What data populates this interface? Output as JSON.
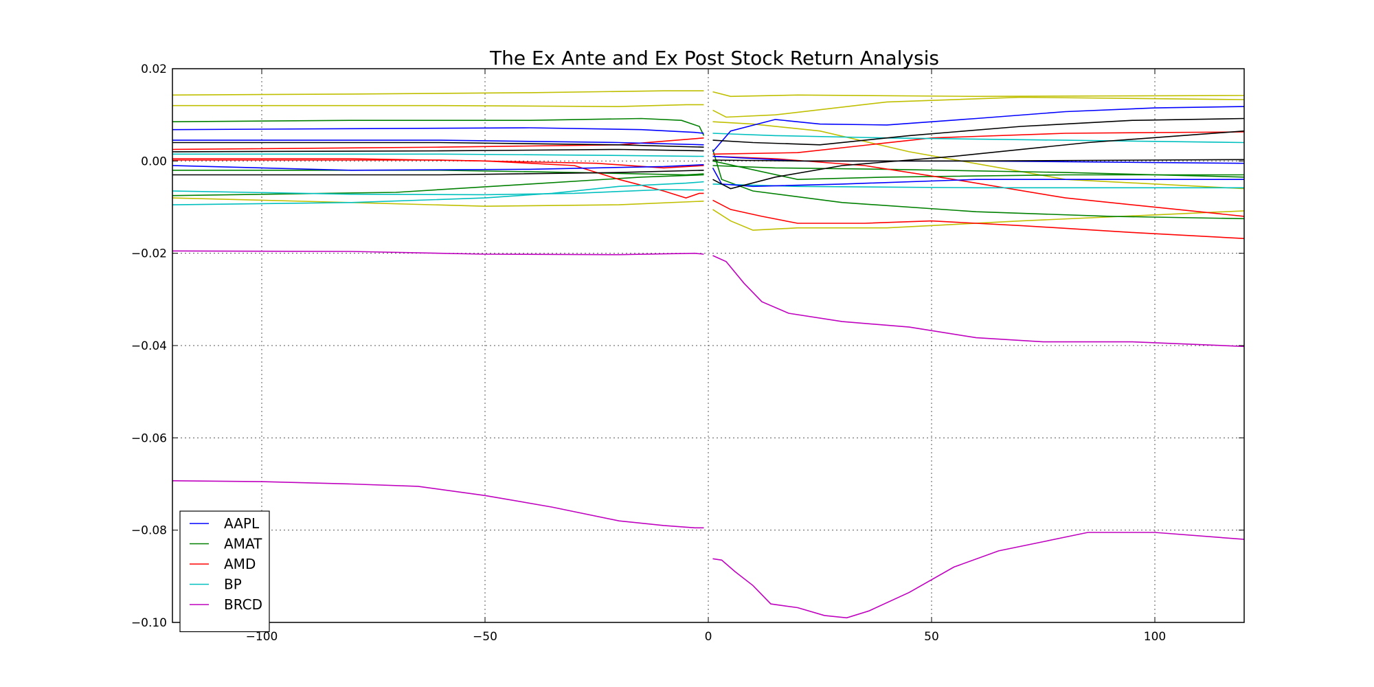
{
  "chart_data": {
    "type": "line",
    "title": "The Ex Ante and Ex Post Stock Return Analysis",
    "xlabel": "",
    "ylabel": "",
    "xlim": [
      -120,
      120
    ],
    "ylim": [
      -0.1,
      0.02
    ],
    "x_ticks": [
      -100,
      -50,
      0,
      50,
      100
    ],
    "x_tick_labels": [
      "−100",
      "−50",
      "0",
      "50",
      "100"
    ],
    "y_ticks": [
      0.02,
      0.0,
      -0.02,
      -0.04,
      -0.06,
      -0.08,
      -0.1
    ],
    "y_tick_labels": [
      "0.02",
      "0.00",
      "−0.02",
      "−0.04",
      "−0.06",
      "−0.08",
      "−0.10"
    ],
    "grid": true,
    "legend_position": "lower-left",
    "colors": {
      "blue": "#0000ff",
      "green": "#008000",
      "red": "#ff0000",
      "cyan": "#00bfbf",
      "magenta": "#bf00bf",
      "yellow": "#bfbf00",
      "black": "#000000"
    },
    "legend": [
      {
        "name": "AAPL",
        "color": "#0000ff"
      },
      {
        "name": "AMAT",
        "color": "#008000"
      },
      {
        "name": "AMD",
        "color": "#ff0000"
      },
      {
        "name": "BP",
        "color": "#00bfbf"
      },
      {
        "name": "BRCD",
        "color": "#bf00bf"
      }
    ],
    "series": [
      {
        "name": "BRCD",
        "color": "#bf00bf",
        "points": [
          [
            -120,
            -0.0693
          ],
          [
            -100,
            -0.0695
          ],
          [
            -80,
            -0.07
          ],
          [
            -65,
            -0.0705
          ],
          [
            -50,
            -0.0725
          ],
          [
            -35,
            -0.075
          ],
          [
            -20,
            -0.078
          ],
          [
            -10,
            -0.079
          ],
          [
            -3,
            -0.0795
          ],
          [
            -1,
            -0.0795
          ]
        ]
      },
      {
        "name": "BRCD",
        "color": "#bf00bf",
        "points": [
          [
            1,
            -0.0862
          ],
          [
            3,
            -0.0865
          ],
          [
            6,
            -0.089
          ],
          [
            10,
            -0.092
          ],
          [
            14,
            -0.096
          ],
          [
            20,
            -0.0968
          ],
          [
            26,
            -0.0985
          ],
          [
            31,
            -0.099
          ],
          [
            36,
            -0.0975
          ],
          [
            45,
            -0.0935
          ],
          [
            55,
            -0.088
          ],
          [
            65,
            -0.0845
          ],
          [
            75,
            -0.0825
          ],
          [
            85,
            -0.0805
          ],
          [
            100,
            -0.0805
          ],
          [
            120,
            -0.082
          ]
        ]
      },
      {
        "name": "",
        "color": "#bf00bf",
        "points": [
          [
            -120,
            -0.0195
          ],
          [
            -80,
            -0.0196
          ],
          [
            -50,
            -0.0202
          ],
          [
            -20,
            -0.0203
          ],
          [
            -3,
            -0.02
          ],
          [
            -1,
            -0.0202
          ]
        ]
      },
      {
        "name": "",
        "color": "#bf00bf",
        "points": [
          [
            1,
            -0.0205
          ],
          [
            4,
            -0.0218
          ],
          [
            8,
            -0.0265
          ],
          [
            12,
            -0.0305
          ],
          [
            18,
            -0.033
          ],
          [
            30,
            -0.0348
          ],
          [
            45,
            -0.036
          ],
          [
            60,
            -0.0383
          ],
          [
            75,
            -0.0392
          ],
          [
            95,
            -0.0392
          ],
          [
            120,
            -0.0402
          ]
        ]
      },
      {
        "name": "",
        "color": "#bfbf00",
        "points": [
          [
            -120,
            0.0143
          ],
          [
            -80,
            0.0145
          ],
          [
            -40,
            0.0148
          ],
          [
            -10,
            0.0152
          ],
          [
            -1,
            0.0152
          ]
        ]
      },
      {
        "name": "",
        "color": "#bfbf00",
        "points": [
          [
            1,
            0.015
          ],
          [
            5,
            0.014
          ],
          [
            20,
            0.0143
          ],
          [
            60,
            0.014
          ],
          [
            120,
            0.0142
          ]
        ]
      },
      {
        "name": "",
        "color": "#bfbf00",
        "points": [
          [
            -120,
            0.012
          ],
          [
            -60,
            0.012
          ],
          [
            -20,
            0.0118
          ],
          [
            -5,
            0.0122
          ],
          [
            -1,
            0.0122
          ]
        ]
      },
      {
        "name": "",
        "color": "#bfbf00",
        "points": [
          [
            1,
            0.011
          ],
          [
            4,
            0.0095
          ],
          [
            15,
            0.01
          ],
          [
            40,
            0.0128
          ],
          [
            70,
            0.0138
          ],
          [
            120,
            0.0133
          ]
        ]
      },
      {
        "name": "",
        "color": "#bfbf00",
        "points": [
          [
            -120,
            -0.008
          ],
          [
            -80,
            -0.009
          ],
          [
            -50,
            -0.0098
          ],
          [
            -20,
            -0.0095
          ],
          [
            -1,
            -0.0087
          ]
        ]
      },
      {
        "name": "",
        "color": "#bfbf00",
        "points": [
          [
            1,
            -0.0105
          ],
          [
            5,
            -0.013
          ],
          [
            10,
            -0.015
          ],
          [
            20,
            -0.0145
          ],
          [
            40,
            -0.0145
          ],
          [
            70,
            -0.013
          ],
          [
            120,
            -0.0108
          ]
        ]
      },
      {
        "name": "",
        "color": "#bfbf00",
        "points": [
          [
            1,
            0.0085
          ],
          [
            10,
            0.008
          ],
          [
            25,
            0.0065
          ],
          [
            45,
            0.002
          ],
          [
            80,
            -0.004
          ],
          [
            120,
            -0.006
          ]
        ]
      },
      {
        "name": "AMAT",
        "color": "#008000",
        "points": [
          [
            -120,
            0.0085
          ],
          [
            -80,
            0.0088
          ],
          [
            -40,
            0.0088
          ],
          [
            -15,
            0.0092
          ],
          [
            -6,
            0.0088
          ],
          [
            -2,
            0.0075
          ],
          [
            -1,
            0.0055
          ]
        ]
      },
      {
        "name": "",
        "color": "#008000",
        "points": [
          [
            1,
            0.0025
          ],
          [
            3,
            -0.004
          ],
          [
            10,
            -0.0065
          ],
          [
            30,
            -0.009
          ],
          [
            60,
            -0.011
          ],
          [
            90,
            -0.012
          ],
          [
            120,
            -0.0125
          ]
        ]
      },
      {
        "name": "",
        "color": "#008000",
        "points": [
          [
            -120,
            -0.0075
          ],
          [
            -70,
            -0.0068
          ],
          [
            -40,
            -0.005
          ],
          [
            -15,
            -0.0035
          ],
          [
            -1,
            -0.003
          ]
        ]
      },
      {
        "name": "",
        "color": "#008000",
        "points": [
          [
            -120,
            -0.002
          ],
          [
            -60,
            -0.002
          ],
          [
            -30,
            -0.0025
          ],
          [
            -5,
            -0.003
          ],
          [
            -1,
            -0.0028
          ]
        ]
      },
      {
        "name": "",
        "color": "#008000",
        "points": [
          [
            1,
            -0.001
          ],
          [
            15,
            -0.0015
          ],
          [
            40,
            -0.0018
          ],
          [
            80,
            -0.0025
          ],
          [
            120,
            -0.0035
          ]
        ]
      },
      {
        "name": "",
        "color": "#008000",
        "points": [
          [
            1,
            0.0
          ],
          [
            20,
            -0.004
          ],
          [
            40,
            -0.0035
          ],
          [
            80,
            -0.003
          ],
          [
            120,
            -0.003
          ]
        ]
      },
      {
        "name": "AMD",
        "color": "#ff0000",
        "points": [
          [
            -120,
            0.0005
          ],
          [
            -80,
            0.0005
          ],
          [
            -50,
            0.0
          ],
          [
            -30,
            -0.001
          ],
          [
            -20,
            -0.004
          ],
          [
            -10,
            -0.0065
          ],
          [
            -5,
            -0.008
          ],
          [
            -2,
            -0.007
          ],
          [
            -1,
            -0.007
          ]
        ]
      },
      {
        "name": "",
        "color": "#ff0000",
        "points": [
          [
            1,
            -0.0085
          ],
          [
            5,
            -0.0105
          ],
          [
            12,
            -0.012
          ],
          [
            20,
            -0.0135
          ],
          [
            35,
            -0.0135
          ],
          [
            50,
            -0.013
          ],
          [
            70,
            -0.014
          ],
          [
            95,
            -0.0155
          ],
          [
            120,
            -0.0168
          ]
        ]
      },
      {
        "name": "",
        "color": "#ff0000",
        "points": [
          [
            -120,
            0.0002
          ],
          [
            -60,
            0.0002
          ],
          [
            -25,
            -0.0005
          ],
          [
            -10,
            -0.0015
          ],
          [
            -1,
            -0.001
          ]
        ]
      },
      {
        "name": "",
        "color": "#ff0000",
        "points": [
          [
            1,
            0.001
          ],
          [
            15,
            0.0005
          ],
          [
            35,
            -0.001
          ],
          [
            55,
            -0.004
          ],
          [
            80,
            -0.008
          ],
          [
            120,
            -0.012
          ]
        ]
      },
      {
        "name": "",
        "color": "#ff0000",
        "points": [
          [
            1,
            0.0015
          ],
          [
            20,
            0.0018
          ],
          [
            50,
            0.005
          ],
          [
            80,
            0.006
          ],
          [
            120,
            0.0063
          ]
        ]
      },
      {
        "name": "",
        "color": "#ff0000",
        "points": [
          [
            -120,
            0.0025
          ],
          [
            -60,
            0.003
          ],
          [
            -20,
            0.0035
          ],
          [
            -1,
            0.005
          ]
        ]
      },
      {
        "name": "BP",
        "color": "#00bfbf",
        "points": [
          [
            -120,
            -0.0065
          ],
          [
            -80,
            -0.0072
          ],
          [
            -50,
            -0.0073
          ],
          [
            -30,
            -0.007
          ],
          [
            -10,
            -0.0062
          ],
          [
            -1,
            -0.0063
          ]
        ]
      },
      {
        "name": "",
        "color": "#00bfbf",
        "points": [
          [
            1,
            -0.005
          ],
          [
            20,
            -0.0055
          ],
          [
            60,
            -0.0058
          ],
          [
            120,
            -0.0058
          ]
        ]
      },
      {
        "name": "",
        "color": "#00bfbf",
        "points": [
          [
            -120,
            -0.0095
          ],
          [
            -80,
            -0.009
          ],
          [
            -50,
            -0.008
          ],
          [
            -35,
            -0.007
          ],
          [
            -20,
            -0.0055
          ],
          [
            -5,
            -0.0048
          ],
          [
            -1,
            -0.0045
          ]
        ]
      },
      {
        "name": "",
        "color": "#00bfbf",
        "points": [
          [
            -120,
            0.0015
          ],
          [
            -60,
            0.0015
          ],
          [
            -20,
            0.0012
          ],
          [
            -1,
            0.001
          ]
        ]
      },
      {
        "name": "",
        "color": "#00bfbf",
        "points": [
          [
            1,
            0.006
          ],
          [
            15,
            0.0055
          ],
          [
            40,
            0.005
          ],
          [
            80,
            0.0045
          ],
          [
            120,
            0.004
          ]
        ]
      },
      {
        "name": "AAPL",
        "color": "#0000ff",
        "points": [
          [
            -120,
            0.0068
          ],
          [
            -80,
            0.007
          ],
          [
            -40,
            0.0072
          ],
          [
            -15,
            0.0068
          ],
          [
            -3,
            0.0062
          ],
          [
            -1,
            0.006
          ]
        ]
      },
      {
        "name": "",
        "color": "#0000ff",
        "points": [
          [
            1,
            0.002
          ],
          [
            5,
            0.0065
          ],
          [
            15,
            0.009
          ],
          [
            25,
            0.008
          ],
          [
            40,
            0.0078
          ],
          [
            60,
            0.0092
          ],
          [
            80,
            0.0107
          ],
          [
            100,
            0.0115
          ],
          [
            120,
            0.0118
          ]
        ]
      },
      {
        "name": "",
        "color": "#0000ff",
        "points": [
          [
            -120,
            0.0045
          ],
          [
            -60,
            0.0045
          ],
          [
            -20,
            0.004
          ],
          [
            -1,
            0.0035
          ]
        ]
      },
      {
        "name": "",
        "color": "#0000ff",
        "points": [
          [
            -120,
            -0.001
          ],
          [
            -80,
            -0.002
          ],
          [
            -40,
            -0.0018
          ],
          [
            -10,
            -0.0012
          ],
          [
            -1,
            -0.0008
          ]
        ]
      },
      {
        "name": "",
        "color": "#0000ff",
        "points": [
          [
            1,
            0.001
          ],
          [
            20,
            0.0
          ],
          [
            60,
            0.0
          ],
          [
            120,
            -0.0005
          ]
        ]
      },
      {
        "name": "",
        "color": "#0000ff",
        "points": [
          [
            1,
            -0.0015
          ],
          [
            3,
            -0.005
          ],
          [
            10,
            -0.0055
          ],
          [
            30,
            -0.005
          ],
          [
            60,
            -0.004
          ],
          [
            120,
            -0.004
          ]
        ]
      },
      {
        "name": "",
        "color": "#000000",
        "points": [
          [
            -120,
            0.004
          ],
          [
            -60,
            0.004
          ],
          [
            -20,
            0.0035
          ],
          [
            -1,
            0.003
          ]
        ]
      },
      {
        "name": "",
        "color": "#000000",
        "points": [
          [
            -120,
            0.002
          ],
          [
            -60,
            0.0022
          ],
          [
            -20,
            0.0025
          ],
          [
            -1,
            0.0022
          ]
        ]
      },
      {
        "name": "",
        "color": "#000000",
        "points": [
          [
            1,
            0.0045
          ],
          [
            10,
            0.004
          ],
          [
            25,
            0.0035
          ],
          [
            45,
            0.0055
          ],
          [
            70,
            0.0075
          ],
          [
            95,
            0.0088
          ],
          [
            120,
            0.0092
          ]
        ]
      },
      {
        "name": "",
        "color": "#000000",
        "points": [
          [
            1,
            -0.004
          ],
          [
            5,
            -0.006
          ],
          [
            15,
            -0.0035
          ],
          [
            30,
            -0.001
          ],
          [
            55,
            0.001
          ],
          [
            85,
            0.004
          ],
          [
            120,
            0.0065
          ]
        ]
      },
      {
        "name": "",
        "color": "#000000",
        "points": [
          [
            -120,
            -0.003
          ],
          [
            -60,
            -0.003
          ],
          [
            -20,
            -0.0025
          ],
          [
            -1,
            -0.002
          ]
        ]
      },
      {
        "name": "",
        "color": "#000000",
        "points": [
          [
            1,
            0.0002
          ],
          [
            20,
            0.0
          ],
          [
            60,
            0.0
          ],
          [
            120,
            0.0003
          ]
        ]
      }
    ]
  }
}
